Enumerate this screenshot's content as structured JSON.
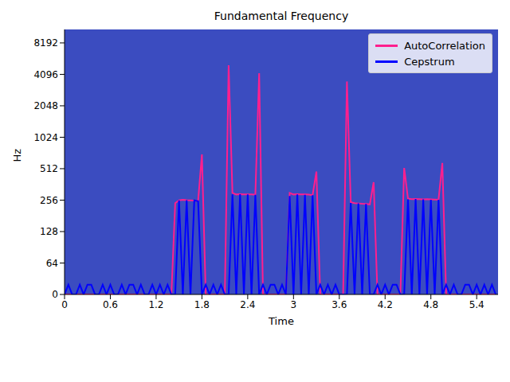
{
  "chart_data": {
    "type": "line",
    "title": "Fundamental Frequency",
    "x_label": "Time",
    "y_label": "Hz",
    "x": [
      0,
      0.05,
      0.1,
      0.15,
      0.2,
      0.25,
      0.3,
      0.35,
      0.4,
      0.45,
      0.5,
      0.55,
      0.6,
      0.65,
      0.7,
      0.75,
      0.8,
      0.85,
      0.9,
      0.95,
      1,
      1.05,
      1.1,
      1.15,
      1.2,
      1.25,
      1.3,
      1.35,
      1.4,
      1.45,
      1.5,
      1.55,
      1.6,
      1.65,
      1.7,
      1.75,
      1.8,
      1.85,
      1.9,
      1.95,
      2,
      2.05,
      2.1,
      2.15,
      2.2,
      2.25,
      2.3,
      2.35,
      2.4,
      2.45,
      2.5,
      2.55,
      2.6,
      2.65,
      2.7,
      2.75,
      2.8,
      2.85,
      2.9,
      2.95,
      3,
      3.05,
      3.1,
      3.15,
      3.2,
      3.25,
      3.3,
      3.35,
      3.4,
      3.45,
      3.5,
      3.55,
      3.6,
      3.65,
      3.7,
      3.75,
      3.8,
      3.85,
      3.9,
      3.95,
      4,
      4.05,
      4.1,
      4.15,
      4.2,
      4.25,
      4.3,
      4.35,
      4.4,
      4.45,
      4.5,
      4.55,
      4.6,
      4.65,
      4.7,
      4.75,
      4.8,
      4.85,
      4.9,
      4.95,
      5,
      5.05,
      5.1,
      5.15,
      5.2,
      5.25,
      5.3,
      5.35,
      5.4,
      5.45,
      5.5,
      5.55,
      5.6,
      5.65
    ],
    "series": [
      {
        "name": "AutoCorrelation",
        "color": "#ff1f8e",
        "values": [
          0,
          0,
          0,
          0,
          0,
          0,
          0,
          0,
          0,
          0,
          0,
          0,
          0,
          0,
          0,
          0,
          0,
          0,
          0,
          0,
          0,
          0,
          0,
          0,
          0,
          0,
          0,
          0,
          0,
          240,
          255,
          258,
          256,
          255,
          254,
          252,
          700,
          0,
          0,
          0,
          0,
          0,
          0,
          5000,
          300,
          290,
          292,
          291,
          290,
          290,
          288,
          4200,
          0,
          0,
          0,
          0,
          0,
          0,
          0,
          300,
          290,
          292,
          291,
          290,
          289,
          285,
          480,
          0,
          0,
          0,
          0,
          0,
          0,
          0,
          3500,
          245,
          240,
          238,
          236,
          235,
          233,
          380,
          0,
          0,
          0,
          0,
          0,
          0,
          0,
          520,
          265,
          262,
          263,
          262,
          260,
          261,
          260,
          259,
          258,
          580,
          0,
          0,
          0,
          0,
          0,
          0,
          0,
          0,
          0,
          0,
          0,
          0,
          0,
          0
        ]
      },
      {
        "name": "Cepstrum",
        "color": "#0000ff",
        "values": [
          0,
          20,
          0,
          0,
          20,
          0,
          20,
          20,
          0,
          0,
          20,
          0,
          20,
          0,
          0,
          20,
          0,
          20,
          20,
          0,
          20,
          0,
          0,
          20,
          0,
          20,
          0,
          20,
          0,
          0,
          255,
          0,
          256,
          0,
          255,
          250,
          0,
          20,
          0,
          20,
          0,
          20,
          0,
          0,
          290,
          0,
          292,
          0,
          290,
          0,
          288,
          0,
          20,
          0,
          20,
          20,
          0,
          20,
          0,
          280,
          0,
          290,
          0,
          288,
          0,
          285,
          0,
          20,
          0,
          20,
          0,
          20,
          0,
          0,
          0,
          240,
          0,
          238,
          0,
          235,
          0,
          0,
          20,
          0,
          20,
          0,
          20,
          20,
          0,
          0,
          260,
          0,
          262,
          0,
          260,
          0,
          258,
          0,
          258,
          0,
          20,
          0,
          20,
          0,
          0,
          20,
          20,
          0,
          20,
          0,
          20,
          0,
          20,
          0
        ]
      }
    ],
    "xlim": [
      0,
      5.68
    ],
    "xticks": [
      0,
      0.6,
      1.2,
      1.8,
      2.4,
      3,
      3.6,
      4.2,
      4.8,
      5.4
    ],
    "ylim": [
      0,
      11025
    ],
    "yticks": [
      0,
      64,
      128,
      256,
      512,
      1024,
      2048,
      4096,
      8192
    ],
    "log": "y",
    "grid": false,
    "legend": "upper right"
  }
}
